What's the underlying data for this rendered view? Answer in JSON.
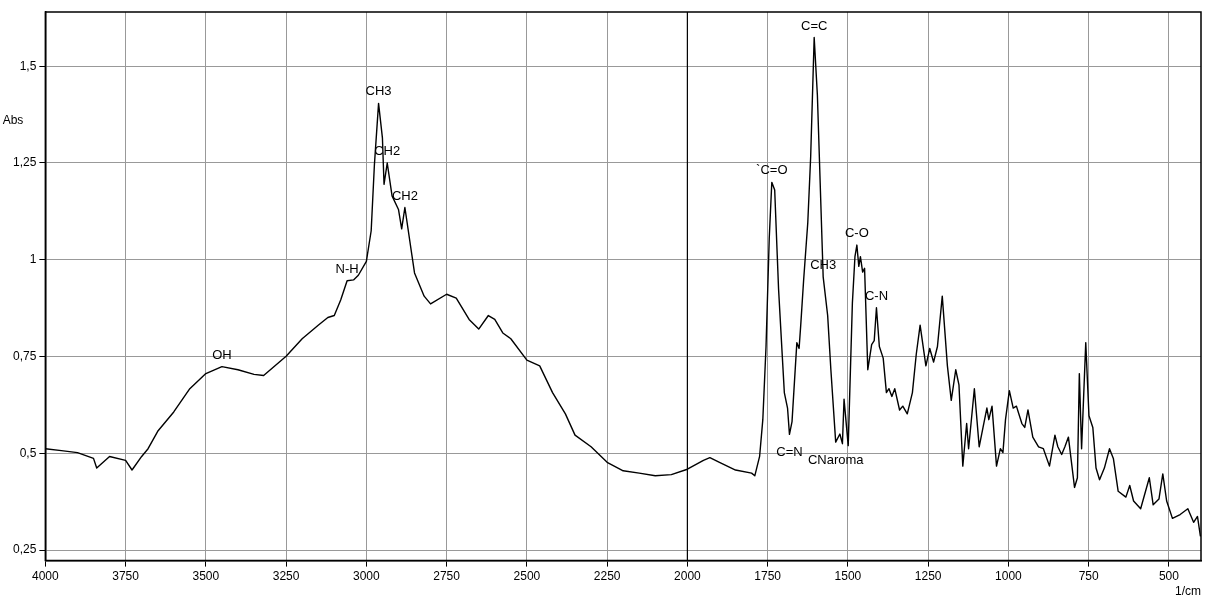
{
  "chart_data": {
    "type": "line",
    "xlabel": "1/cm",
    "ylabel": "Abs",
    "xlim": [
      4000,
      400
    ],
    "ylim": [
      0.223,
      1.64
    ],
    "xticks": [
      4000,
      3750,
      3500,
      3250,
      3000,
      2750,
      2500,
      2250,
      2000,
      1750,
      1500,
      1250,
      1000,
      750,
      500
    ],
    "yticks": [
      {
        "value": 0.25,
        "label": "0,25"
      },
      {
        "value": 0.5,
        "label": "0,5"
      },
      {
        "value": 0.75,
        "label": "0,75"
      },
      {
        "value": 1,
        "label": "1"
      },
      {
        "value": 1.25,
        "label": "1,25"
      },
      {
        "value": 1.5,
        "label": "1,5"
      }
    ],
    "grid": true,
    "legend": false,
    "marker": "none",
    "line_style": "solid",
    "ref_lines": [
      {
        "axis": "x",
        "value": 2000,
        "color": "#000000"
      }
    ],
    "series": [
      {
        "color": "#000000",
        "x": [
          4000,
          3950,
          3900,
          3850,
          3840,
          3800,
          3750,
          3730,
          3700,
          3680,
          3650,
          3600,
          3550,
          3500,
          3450,
          3400,
          3350,
          3320,
          3250,
          3200,
          3150,
          3120,
          3100,
          3080,
          3060,
          3040,
          3025,
          3000,
          2985,
          2975,
          2962,
          2950,
          2945,
          2935,
          2920,
          2900,
          2890,
          2880,
          2850,
          2820,
          2800,
          2750,
          2720,
          2680,
          2650,
          2620,
          2600,
          2575,
          2550,
          2500,
          2460,
          2420,
          2380,
          2350,
          2300,
          2250,
          2200,
          2150,
          2100,
          2050,
          2000,
          1950,
          1930,
          1900,
          1850,
          1800,
          1790,
          1775,
          1765,
          1755,
          1745,
          1737,
          1728,
          1716,
          1704,
          1698,
          1688,
          1682,
          1674,
          1659,
          1652,
          1647,
          1638,
          1625,
          1616,
          1605,
          1595,
          1577,
          1563,
          1553,
          1538,
          1525,
          1517,
          1512,
          1499,
          1486,
          1478,
          1472,
          1466,
          1461,
          1454,
          1448,
          1438,
          1426,
          1418,
          1411,
          1402,
          1390,
          1380,
          1372,
          1363,
          1354,
          1339,
          1329,
          1315,
          1299,
          1287,
          1275,
          1257,
          1245,
          1233,
          1221,
          1206,
          1190,
          1178,
          1164,
          1154,
          1142,
          1130,
          1124,
          1106,
          1091,
          1079,
          1067,
          1061,
          1051,
          1037,
          1025,
          1017,
          1009,
          997,
          985,
          975,
          958,
          949,
          939,
          924,
          906,
          891,
          872,
          855,
          846,
          834,
          824,
          813,
          794,
          785,
          779,
          772,
          759,
          749,
          737,
          727,
          716,
          701,
          685,
          673,
          658,
          634,
          622,
          610,
          588,
          561,
          549,
          531,
          519,
          507,
          489,
          465,
          441,
          423,
          411,
          402
        ],
        "values": [
          0.512,
          0.507,
          0.502,
          0.487,
          0.462,
          0.492,
          0.482,
          0.457,
          0.492,
          0.512,
          0.557,
          0.607,
          0.667,
          0.706,
          0.724,
          0.716,
          0.704,
          0.701,
          0.751,
          0.796,
          0.831,
          0.851,
          0.856,
          0.896,
          0.946,
          0.948,
          0.96,
          0.996,
          1.075,
          1.245,
          1.404,
          1.315,
          1.195,
          1.25,
          1.165,
          1.13,
          1.08,
          1.135,
          0.966,
          0.906,
          0.886,
          0.911,
          0.901,
          0.846,
          0.821,
          0.856,
          0.846,
          0.811,
          0.796,
          0.741,
          0.726,
          0.657,
          0.602,
          0.547,
          0.517,
          0.477,
          0.455,
          0.449,
          0.442,
          0.445,
          0.459,
          0.482,
          0.489,
          0.477,
          0.457,
          0.449,
          0.442,
          0.492,
          0.587,
          0.776,
          1.055,
          1.2,
          1.18,
          0.925,
          0.746,
          0.657,
          0.617,
          0.549,
          0.582,
          0.786,
          0.771,
          0.83,
          0.946,
          1.095,
          1.265,
          1.574,
          1.425,
          0.956,
          0.856,
          0.716,
          0.529,
          0.55,
          0.525,
          0.64,
          0.52,
          0.888,
          1.008,
          1.038,
          0.983,
          1.008,
          0.968,
          0.978,
          0.716,
          0.781,
          0.791,
          0.876,
          0.776,
          0.746,
          0.657,
          0.667,
          0.647,
          0.667,
          0.612,
          0.622,
          0.602,
          0.657,
          0.756,
          0.831,
          0.726,
          0.771,
          0.736,
          0.776,
          0.906,
          0.726,
          0.637,
          0.716,
          0.677,
          0.467,
          0.577,
          0.512,
          0.667,
          0.517,
          0.567,
          0.617,
          0.587,
          0.622,
          0.467,
          0.512,
          0.502,
          0.587,
          0.662,
          0.617,
          0.622,
          0.577,
          0.567,
          0.612,
          0.542,
          0.517,
          0.512,
          0.467,
          0.547,
          0.517,
          0.497,
          0.517,
          0.542,
          0.412,
          0.437,
          0.706,
          0.512,
          0.786,
          0.597,
          0.567,
          0.462,
          0.432,
          0.462,
          0.512,
          0.487,
          0.402,
          0.387,
          0.417,
          0.377,
          0.357,
          0.437,
          0.367,
          0.382,
          0.447,
          0.377,
          0.332,
          0.342,
          0.357,
          0.322,
          0.337,
          0.287
        ]
      }
    ],
    "annotations": [
      {
        "text": "OH",
        "x": 3450,
        "y": 0.724
      },
      {
        "text": "N-H",
        "x": 3060,
        "y": 0.946
      },
      {
        "text": "CH3",
        "x": 2962,
        "y": 1.404
      },
      {
        "text": "CH2",
        "x": 2935,
        "y": 1.25
      },
      {
        "text": "CH2",
        "x": 2880,
        "y": 1.135
      },
      {
        "text": "`C=O",
        "x": 1737,
        "y": 1.2
      },
      {
        "text": "C=C",
        "x": 1605,
        "y": 1.574
      },
      {
        "text": "CH3",
        "x": 1577,
        "y": 0.956
      },
      {
        "text": "C-N",
        "x": 1411,
        "y": 0.876
      },
      {
        "text": "C-O",
        "x": 1472,
        "y": 1.038
      },
      {
        "text": "CNaroma",
        "x": 1538,
        "y": 0.529
      },
      {
        "text": "C=N",
        "x": 1682,
        "y": 0.549
      }
    ]
  }
}
